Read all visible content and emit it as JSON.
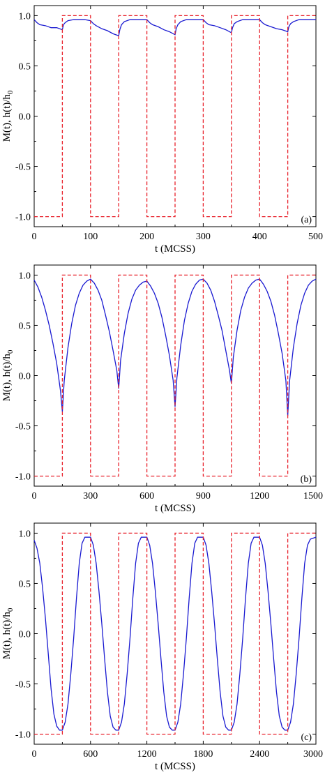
{
  "chart_data": [
    {
      "type": "line",
      "panel_label": "(a)",
      "xlabel": "t (MCSS)",
      "ylabel": "M(t), h(t)/h",
      "ylabel_sub": "0",
      "xlim": [
        0,
        500
      ],
      "ylim": [
        -1.1,
        1.1
      ],
      "xticks": [
        "0",
        "100",
        "200",
        "300",
        "400",
        "500"
      ],
      "xtick_values": [
        0,
        100,
        200,
        300,
        400,
        500
      ],
      "yticks": [
        "1.0",
        "0.5",
        "0.0",
        "-0.5",
        "-1.0"
      ],
      "ytick_values": [
        1.0,
        0.5,
        0.0,
        -0.5,
        -1.0
      ],
      "colors": {
        "magnetization": "#1a1ad1",
        "field": "#e8202a"
      },
      "series": [
        {
          "style": "solid",
          "color": "#1a1ad1",
          "x": [
            0,
            5,
            10,
            20,
            30,
            40,
            50,
            52,
            55,
            60,
            70,
            80,
            90,
            100,
            105,
            110,
            120,
            130,
            140,
            150,
            152,
            155,
            160,
            170,
            180,
            190,
            200,
            205,
            210,
            220,
            230,
            240,
            250,
            252,
            255,
            260,
            270,
            280,
            290,
            300,
            305,
            310,
            320,
            330,
            340,
            350,
            352,
            355,
            360,
            370,
            380,
            390,
            400,
            405,
            410,
            420,
            430,
            440,
            450,
            452,
            455,
            460,
            470,
            480,
            490,
            500
          ],
          "y": [
            0.96,
            0.93,
            0.91,
            0.9,
            0.88,
            0.88,
            0.86,
            0.91,
            0.93,
            0.95,
            0.96,
            0.96,
            0.96,
            0.95,
            0.92,
            0.9,
            0.87,
            0.85,
            0.82,
            0.8,
            0.86,
            0.91,
            0.94,
            0.96,
            0.96,
            0.96,
            0.96,
            0.93,
            0.91,
            0.89,
            0.86,
            0.84,
            0.81,
            0.87,
            0.91,
            0.94,
            0.96,
            0.96,
            0.96,
            0.96,
            0.93,
            0.91,
            0.9,
            0.88,
            0.86,
            0.83,
            0.88,
            0.92,
            0.94,
            0.96,
            0.96,
            0.96,
            0.96,
            0.93,
            0.91,
            0.89,
            0.87,
            0.86,
            0.84,
            0.89,
            0.92,
            0.94,
            0.96,
            0.96,
            0.96,
            0.96
          ]
        },
        {
          "style": "dashed",
          "color": "#e8202a",
          "x": [
            0,
            50,
            50,
            100,
            100,
            150,
            150,
            200,
            200,
            250,
            250,
            300,
            300,
            350,
            350,
            400,
            400,
            450,
            450,
            500
          ],
          "y": [
            -1,
            -1,
            1,
            1,
            -1,
            -1,
            1,
            1,
            -1,
            -1,
            1,
            1,
            -1,
            -1,
            1,
            1,
            -1,
            -1,
            1,
            1
          ]
        }
      ]
    },
    {
      "type": "line",
      "panel_label": "(b)",
      "xlabel": "t (MCSS)",
      "ylabel": "M(t), h(t)/h",
      "ylabel_sub": "0",
      "xlim": [
        0,
        1500
      ],
      "ylim": [
        -1.1,
        1.1
      ],
      "xticks": [
        "0",
        "300",
        "600",
        "900",
        "1200",
        "1500"
      ],
      "xtick_values": [
        0,
        300,
        600,
        900,
        1200,
        1500
      ],
      "yticks": [
        "1.0",
        "0.5",
        "0.0",
        "-0.5",
        "-1.0"
      ],
      "ytick_values": [
        1.0,
        0.5,
        0.0,
        -0.5,
        -1.0
      ],
      "colors": {
        "magnetization": "#1a1ad1",
        "field": "#e8202a"
      },
      "series": [
        {
          "style": "solid",
          "color": "#1a1ad1",
          "x": [
            0,
            20,
            40,
            60,
            80,
            100,
            120,
            140,
            150,
            160,
            180,
            200,
            220,
            240,
            260,
            280,
            300,
            320,
            340,
            360,
            380,
            400,
            420,
            440,
            450,
            460,
            480,
            500,
            520,
            540,
            560,
            580,
            600,
            620,
            640,
            660,
            680,
            700,
            720,
            740,
            750,
            760,
            780,
            800,
            820,
            840,
            860,
            880,
            900,
            920,
            940,
            960,
            980,
            1000,
            1020,
            1040,
            1050,
            1060,
            1080,
            1100,
            1120,
            1140,
            1160,
            1180,
            1200,
            1220,
            1240,
            1260,
            1280,
            1300,
            1320,
            1340,
            1350,
            1360,
            1380,
            1400,
            1420,
            1440,
            1460,
            1480,
            1500
          ],
          "y": [
            0.95,
            0.88,
            0.78,
            0.65,
            0.5,
            0.32,
            0.12,
            -0.15,
            -0.36,
            -0.05,
            0.28,
            0.52,
            0.7,
            0.82,
            0.9,
            0.94,
            0.96,
            0.92,
            0.85,
            0.75,
            0.6,
            0.44,
            0.25,
            0.05,
            -0.13,
            0.15,
            0.42,
            0.62,
            0.76,
            0.85,
            0.9,
            0.93,
            0.94,
            0.89,
            0.82,
            0.72,
            0.58,
            0.4,
            0.2,
            -0.05,
            -0.31,
            -0.02,
            0.3,
            0.55,
            0.72,
            0.84,
            0.91,
            0.95,
            0.96,
            0.92,
            0.85,
            0.74,
            0.6,
            0.45,
            0.25,
            0.05,
            -0.08,
            0.18,
            0.45,
            0.65,
            0.78,
            0.87,
            0.92,
            0.95,
            0.96,
            0.91,
            0.84,
            0.74,
            0.6,
            0.42,
            0.22,
            -0.05,
            -0.4,
            -0.05,
            0.28,
            0.52,
            0.7,
            0.82,
            0.9,
            0.94,
            0.96
          ]
        },
        {
          "style": "dashed",
          "color": "#e8202a",
          "x": [
            0,
            150,
            150,
            300,
            300,
            450,
            450,
            600,
            600,
            750,
            750,
            900,
            900,
            1050,
            1050,
            1200,
            1200,
            1350,
            1350,
            1500
          ],
          "y": [
            -1,
            -1,
            1,
            1,
            -1,
            -1,
            1,
            1,
            -1,
            -1,
            1,
            1,
            -1,
            -1,
            1,
            1,
            -1,
            -1,
            1,
            1
          ]
        }
      ]
    },
    {
      "type": "line",
      "panel_label": "(c)",
      "xlabel": "t (MCSS)",
      "ylabel": "M(t), h(t)/h",
      "ylabel_sub": "0",
      "xlim": [
        0,
        3000
      ],
      "ylim": [
        -1.1,
        1.1
      ],
      "xticks": [
        "0",
        "600",
        "1200",
        "1800",
        "2400",
        "3000"
      ],
      "xtick_values": [
        0,
        600,
        1200,
        1800,
        2400,
        3000
      ],
      "yticks": [
        "1.0",
        "0.5",
        "0.0",
        "-0.5",
        "-1.0"
      ],
      "ytick_values": [
        1.0,
        0.5,
        0.0,
        -0.5,
        -1.0
      ],
      "colors": {
        "magnetization": "#1a1ad1",
        "field": "#e8202a"
      },
      "series": [
        {
          "style": "solid",
          "color": "#1a1ad1",
          "x": [
            0,
            30,
            60,
            90,
            120,
            150,
            180,
            210,
            240,
            270,
            300,
            330,
            360,
            390,
            420,
            450,
            480,
            510,
            540,
            570,
            600,
            630,
            660,
            690,
            720,
            750,
            780,
            810,
            840,
            870,
            900,
            930,
            960,
            990,
            1020,
            1050,
            1080,
            1110,
            1140,
            1170,
            1200,
            1230,
            1260,
            1290,
            1320,
            1350,
            1380,
            1410,
            1440,
            1470,
            1500,
            1530,
            1560,
            1590,
            1620,
            1650,
            1680,
            1710,
            1740,
            1770,
            1800,
            1830,
            1860,
            1890,
            1920,
            1950,
            1980,
            2010,
            2040,
            2070,
            2100,
            2130,
            2160,
            2190,
            2220,
            2250,
            2280,
            2310,
            2340,
            2370,
            2400,
            2430,
            2460,
            2490,
            2520,
            2550,
            2580,
            2610,
            2640,
            2670,
            2700,
            2730,
            2760,
            2790,
            2820,
            2850,
            2880,
            2910,
            2940,
            2970,
            3000
          ],
          "y": [
            0.93,
            0.85,
            0.7,
            0.45,
            0.15,
            -0.2,
            -0.55,
            -0.8,
            -0.92,
            -0.96,
            -0.96,
            -0.88,
            -0.7,
            -0.4,
            -0.05,
            0.35,
            0.7,
            0.9,
            0.96,
            0.96,
            0.96,
            0.88,
            0.7,
            0.42,
            0.1,
            -0.25,
            -0.58,
            -0.82,
            -0.93,
            -0.96,
            -0.96,
            -0.88,
            -0.7,
            -0.4,
            -0.05,
            0.35,
            0.7,
            0.9,
            0.96,
            0.96,
            0.96,
            0.88,
            0.7,
            0.42,
            0.1,
            -0.25,
            -0.58,
            -0.82,
            -0.93,
            -0.96,
            -0.96,
            -0.88,
            -0.7,
            -0.4,
            -0.05,
            0.35,
            0.7,
            0.9,
            0.96,
            0.96,
            0.96,
            0.88,
            0.7,
            0.42,
            0.1,
            -0.25,
            -0.58,
            -0.82,
            -0.93,
            -0.96,
            -0.96,
            -0.88,
            -0.7,
            -0.4,
            -0.05,
            0.35,
            0.7,
            0.9,
            0.96,
            0.96,
            0.96,
            0.88,
            0.7,
            0.42,
            0.1,
            -0.25,
            -0.58,
            -0.82,
            -0.93,
            -0.96,
            -0.96,
            -0.88,
            -0.7,
            -0.4,
            -0.05,
            0.35,
            0.7,
            0.88,
            0.94,
            0.95,
            0.96
          ]
        },
        {
          "style": "dashed",
          "color": "#e8202a",
          "x": [
            0,
            300,
            300,
            600,
            600,
            900,
            900,
            1200,
            1200,
            1500,
            1500,
            1800,
            1800,
            2100,
            2100,
            2400,
            2400,
            2700,
            2700,
            3000
          ],
          "y": [
            -1,
            -1,
            1,
            1,
            -1,
            -1,
            1,
            1,
            -1,
            -1,
            1,
            1,
            -1,
            -1,
            1,
            1,
            -1,
            -1,
            1,
            1
          ]
        }
      ]
    }
  ]
}
